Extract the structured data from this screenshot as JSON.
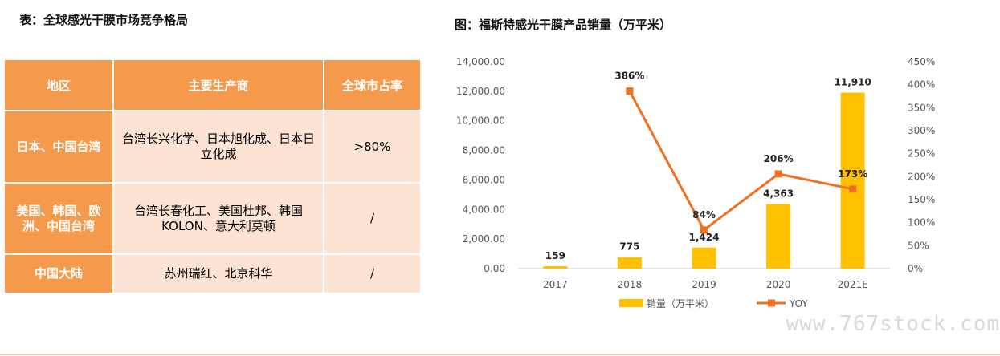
{
  "table_title": "表：全球感光干膜市场竞争格局",
  "chart_title": "图：福斯特感光干膜产品销量（万平米）",
  "table": {
    "headers": [
      "地区",
      "主要生产商",
      "全球市占率"
    ],
    "rows": [
      {
        "region": "日本、中国台湾",
        "makers": "台湾长兴化学、日本旭化成、日本日立化成",
        "share": ">80%"
      },
      {
        "region": "美国、韩国、欧洲、中国台湾",
        "makers": "台湾长春化工、美国杜邦、韩国KOLON、意大利莫顿",
        "share": "/"
      },
      {
        "region": "中国大陆",
        "makers": "苏州瑞红、北京科华",
        "share": "/"
      }
    ]
  },
  "chart_data": {
    "type": "bar+line",
    "title": "图：福斯特感光干膜产品销量（万平米）",
    "categories": [
      "2017",
      "2018",
      "2019",
      "2020",
      "2021E"
    ],
    "series": [
      {
        "name": "销量（万平米）",
        "type": "bar",
        "axis": "left",
        "values": [
          159,
          775,
          1424,
          4363,
          11910
        ],
        "labels": [
          "159",
          "775",
          "1,424",
          "4,363",
          "11,910"
        ]
      },
      {
        "name": "YOY",
        "type": "line",
        "axis": "right",
        "values": [
          null,
          386,
          84,
          206,
          173
        ],
        "labels": [
          "",
          "386%",
          "84%",
          "206%",
          "173%"
        ]
      }
    ],
    "left_axis": {
      "ylim": [
        0,
        14000
      ],
      "ticks": [
        "0.00",
        "2,000.00",
        "4,000.00",
        "6,000.00",
        "8,000.00",
        "10,000.00",
        "12,000.00",
        "14,000.00"
      ]
    },
    "right_axis": {
      "ylim": [
        0,
        450
      ],
      "ticks": [
        "0%",
        "50%",
        "100%",
        "150%",
        "200%",
        "250%",
        "300%",
        "350%",
        "400%",
        "450%"
      ]
    },
    "legend": "bottom",
    "colors": {
      "bar": "#ffc000",
      "line": "#f07020"
    }
  },
  "watermark": "www.767stock.com"
}
